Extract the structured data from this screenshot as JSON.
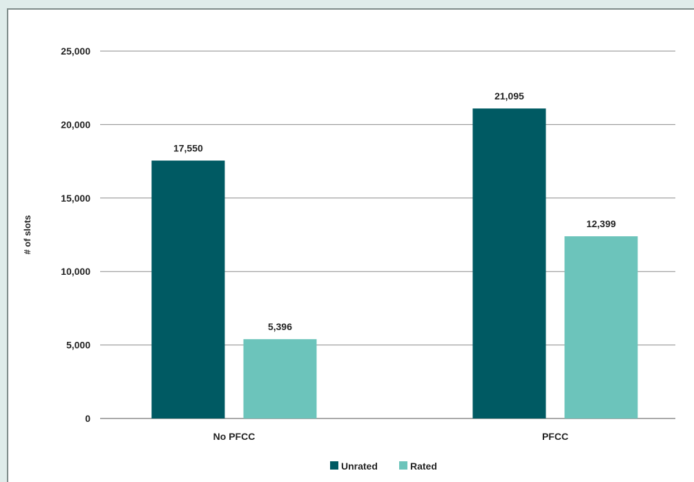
{
  "chart_data": {
    "type": "bar",
    "title": "",
    "xlabel": "",
    "ylabel": "# of slots",
    "ylim": [
      0,
      25000
    ],
    "yticks": [
      "0",
      "5,000",
      "10,000",
      "15,000",
      "20,000",
      "25,000"
    ],
    "categories": [
      "No PFCC",
      "PFCC"
    ],
    "series": [
      {
        "name": "Unrated",
        "color": "#005a63",
        "values": [
          17550,
          21095
        ],
        "labels": [
          "17,550",
          "21,095"
        ]
      },
      {
        "name": "Rated",
        "color": "#6cc4bb",
        "values": [
          5396,
          12399
        ],
        "labels": [
          "5,396",
          "12,399"
        ]
      }
    ],
    "grid": true,
    "legend_position": "bottom-center"
  }
}
